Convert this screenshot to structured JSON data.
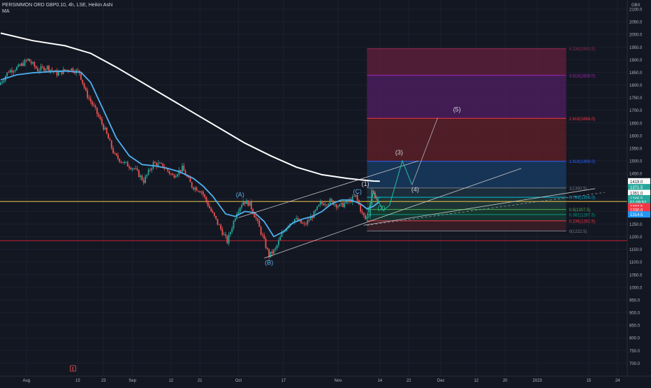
{
  "header": {
    "title": "PERSIMMON ORD GBP0.10, 4h, LSE, Heikin Ashi",
    "indicator": "MA"
  },
  "colors": {
    "background": "#131722",
    "grid": "#1c2030",
    "axis_text": "#b2b5be",
    "candle_up": "#26a69a",
    "candle_down": "#ef5350",
    "ma_slow": "#ffffff",
    "ma_fast": "#4fb0f0",
    "support_line": "#ad1f2f",
    "horizontal_level": "#c8a742",
    "wave_path": "#20c39c",
    "channel": "#c9c9c9"
  },
  "chart_data": {
    "type": "candlestick",
    "currency": "GBX",
    "ylim": [
      675,
      2110
    ],
    "y_ticks": [
      700,
      750,
      800,
      850,
      900,
      950,
      1000,
      1050,
      1100,
      1150,
      1200,
      1250,
      1300,
      1350,
      1400,
      1450,
      1500,
      1550,
      1600,
      1650,
      1700,
      1750,
      1800,
      1850,
      1900,
      1950,
      2000,
      2050,
      2100
    ],
    "x_ticks": [
      {
        "label": "Aug",
        "bar": 8
      },
      {
        "label": "15",
        "bar": 24
      },
      {
        "label": "23",
        "bar": 32
      },
      {
        "label": "Sep",
        "bar": 41
      },
      {
        "label": "12",
        "bar": 53
      },
      {
        "label": "21",
        "bar": 62
      },
      {
        "label": "Oct",
        "bar": 74
      },
      {
        "label": "17",
        "bar": 88
      },
      {
        "label": "Nov",
        "bar": 105
      },
      {
        "label": "14",
        "bar": 118
      },
      {
        "label": "22",
        "bar": 127
      },
      {
        "label": "Dec",
        "bar": 137
      },
      {
        "label": "12",
        "bar": 148
      },
      {
        "label": "20",
        "bar": 157
      },
      {
        "label": "2023",
        "bar": 167
      },
      {
        "label": "15",
        "bar": 183
      },
      {
        "label": "24",
        "bar": 192
      }
    ],
    "price_path": [
      [
        0,
        1800
      ],
      [
        3,
        1855
      ],
      [
        6,
        1870
      ],
      [
        9,
        1900
      ],
      [
        12,
        1860
      ],
      [
        15,
        1870
      ],
      [
        18,
        1845
      ],
      [
        22,
        1865
      ],
      [
        25,
        1850
      ],
      [
        27,
        1770
      ],
      [
        30,
        1700
      ],
      [
        33,
        1620
      ],
      [
        36,
        1520
      ],
      [
        39,
        1490
      ],
      [
        42,
        1470
      ],
      [
        45,
        1420
      ],
      [
        48,
        1490
      ],
      [
        51,
        1480
      ],
      [
        54,
        1440
      ],
      [
        57,
        1470
      ],
      [
        60,
        1400
      ],
      [
        63,
        1380
      ],
      [
        66,
        1300
      ],
      [
        69,
        1230
      ],
      [
        71,
        1180
      ],
      [
        74,
        1300
      ],
      [
        76,
        1340
      ],
      [
        78,
        1330
      ],
      [
        80,
        1270
      ],
      [
        82,
        1200
      ],
      [
        84,
        1125
      ],
      [
        86,
        1150
      ],
      [
        88,
        1210
      ],
      [
        90,
        1250
      ],
      [
        92,
        1270
      ],
      [
        95,
        1245
      ],
      [
        98,
        1290
      ],
      [
        100,
        1330
      ],
      [
        103,
        1340
      ],
      [
        106,
        1320
      ],
      [
        109,
        1340
      ],
      [
        111,
        1360
      ],
      [
        113,
        1290
      ],
      [
        114,
        1270
      ],
      [
        115,
        1285
      ],
      [
        116,
        1385
      ],
      [
        117,
        1360
      ],
      [
        118,
        1345
      ]
    ],
    "ma_slow": [
      [
        0,
        2005
      ],
      [
        10,
        1975
      ],
      [
        20,
        1955
      ],
      [
        28,
        1925
      ],
      [
        36,
        1870
      ],
      [
        44,
        1810
      ],
      [
        52,
        1750
      ],
      [
        60,
        1690
      ],
      [
        68,
        1630
      ],
      [
        76,
        1570
      ],
      [
        84,
        1520
      ],
      [
        92,
        1475
      ],
      [
        100,
        1445
      ],
      [
        108,
        1430
      ],
      [
        116,
        1420
      ],
      [
        118,
        1419
      ]
    ],
    "ma_fast": [
      [
        0,
        1820
      ],
      [
        5,
        1840
      ],
      [
        10,
        1848
      ],
      [
        15,
        1852
      ],
      [
        20,
        1855
      ],
      [
        25,
        1850
      ],
      [
        28,
        1810
      ],
      [
        32,
        1700
      ],
      [
        36,
        1590
      ],
      [
        40,
        1520
      ],
      [
        44,
        1485
      ],
      [
        48,
        1480
      ],
      [
        52,
        1470
      ],
      [
        56,
        1455
      ],
      [
        60,
        1430
      ],
      [
        63,
        1400
      ],
      [
        66,
        1360
      ],
      [
        70,
        1290
      ],
      [
        73,
        1280
      ],
      [
        76,
        1300
      ],
      [
        79,
        1295
      ],
      [
        82,
        1260
      ],
      [
        85,
        1200
      ],
      [
        88,
        1220
      ],
      [
        91,
        1255
      ],
      [
        94,
        1270
      ],
      [
        97,
        1280
      ],
      [
        100,
        1300
      ],
      [
        103,
        1330
      ],
      [
        106,
        1345
      ],
      [
        109,
        1345
      ],
      [
        112,
        1330
      ],
      [
        114,
        1310
      ],
      [
        116,
        1320
      ],
      [
        118,
        1340
      ]
    ],
    "fibonacci": {
      "bar_start": 114,
      "bar_end": 176,
      "levels": [
        {
          "label": "4.236(1943.5)",
          "price": 1943.5,
          "color": "#8c2c4e"
        },
        {
          "label": "3.618(1838.0)",
          "price": 1838.0,
          "color": "#9c27b0"
        },
        {
          "label": "2.618(1668.0)",
          "price": 1668.0,
          "color": "#f23645"
        },
        {
          "label": "1.618(1498.0)",
          "price": 1498.0,
          "color": "#2962ff"
        },
        {
          "label": "1(1392.5)",
          "price": 1392.5,
          "color": "#787b86"
        },
        {
          "label": "0.786(1356.0)",
          "price": 1356.0,
          "color": "#00bcd4"
        },
        {
          "label": "0.5(1307.5)",
          "price": 1307.5,
          "color": "#4caf50"
        },
        {
          "label": "0.382(1287.5)",
          "price": 1287.5,
          "color": "#089981"
        },
        {
          "label": "0.236(1262.5)",
          "price": 1262.5,
          "color": "#f23645"
        },
        {
          "label": "0(1222.5)",
          "price": 1222.5,
          "color": "#787b86"
        }
      ],
      "zones": [
        {
          "from": 1838.0,
          "to": 1943.5,
          "color": "#5c1f3a"
        },
        {
          "from": 1668.0,
          "to": 1838.0,
          "color": "#4a1d5c"
        },
        {
          "from": 1498.0,
          "to": 1668.0,
          "color": "#5b1e26"
        },
        {
          "from": 1392.5,
          "to": 1498.0,
          "color": "#173a5e"
        },
        {
          "from": 1356.0,
          "to": 1392.5,
          "color": "#1e3140"
        },
        {
          "from": 1307.5,
          "to": 1356.0,
          "color": "#1f3a38"
        },
        {
          "from": 1287.5,
          "to": 1307.5,
          "color": "#173c2e"
        },
        {
          "from": 1262.5,
          "to": 1287.5,
          "color": "#153a33"
        },
        {
          "from": 1222.5,
          "to": 1262.5,
          "color": "#3b1f26"
        }
      ]
    },
    "horizontal_lines": [
      {
        "price": 1339,
        "color": "#c8a742"
      },
      {
        "price": 1184,
        "color": "#ad1f2f"
      }
    ],
    "channel_lines": [
      [
        [
          74,
          1275
        ],
        [
          130,
          1500
        ]
      ],
      [
        [
          82,
          1115
        ],
        [
          162,
          1470
        ]
      ],
      [
        [
          113,
          1245
        ],
        [
          185,
          1390
        ]
      ]
    ],
    "dashed_line": [
      [
        114,
        1245
      ],
      [
        188,
        1375
      ]
    ],
    "wave_path": [
      [
        114,
        1280
      ],
      [
        116,
        1375
      ],
      [
        119,
        1305
      ],
      [
        121,
        1323
      ],
      [
        125,
        1500
      ],
      [
        128,
        1405
      ],
      [
        136,
        1670
      ]
    ],
    "wave_labels": [
      {
        "text": "(A)",
        "bar": 74.5,
        "price": 1357,
        "color": "#5fb0e8"
      },
      {
        "text": "(B)",
        "bar": 83.5,
        "price": 1090,
        "color": "#5fb0e8"
      },
      {
        "text": "(C)",
        "bar": 111,
        "price": 1370,
        "color": "#5fb0e8"
      },
      {
        "text": "(1)",
        "bar": 113.5,
        "price": 1400,
        "color": "#d1d4dc"
      },
      {
        "text": "(2)",
        "bar": 118.5,
        "price": 1305,
        "color": "#20c39c"
      },
      {
        "text": "(3)",
        "bar": 124,
        "price": 1525,
        "color": "#d1d4dc"
      },
      {
        "text": "(4)",
        "bar": 129,
        "price": 1378,
        "color": "#d1d4dc"
      },
      {
        "text": "(5)",
        "bar": 142,
        "price": 1695,
        "color": "#d1d4dc"
      }
    ],
    "price_tags": [
      {
        "text": "1419.0",
        "price": 1419,
        "bg": "#ffffff",
        "fg": "#131722"
      },
      {
        "text": "1371.5",
        "price": 1396,
        "bg": "#26a69a",
        "fg": "#ffffff"
      },
      {
        "text": "1351.0",
        "price": 1373,
        "bg": "#ffffff",
        "fg": "#131722"
      },
      {
        "text": "1346.5",
        "price": 1352,
        "bg": "#26a69a",
        "fg": "#ffffff"
      },
      {
        "text": "01:09:52",
        "price": 1337,
        "bg": "#26a69a",
        "fg": "#ffffff"
      },
      {
        "text": "1337.5",
        "price": 1320,
        "bg": "#f23645",
        "fg": "#ffffff"
      },
      {
        "text": "1330.0",
        "price": 1306,
        "bg": "#f23645",
        "fg": "#ffffff"
      },
      {
        "text": "1314.5",
        "price": 1288,
        "bg": "#2196f3",
        "fg": "#ffffff"
      }
    ],
    "event_marker": {
      "text": "E",
      "bar": 22.5
    }
  }
}
